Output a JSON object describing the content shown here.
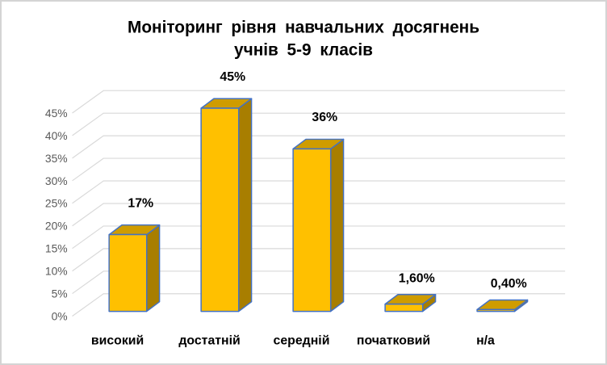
{
  "title": {
    "line1": "Моніторинг рівня навчальних досягнень",
    "line2": "учнів 5-9 класів"
  },
  "chart_data": {
    "type": "bar",
    "style": "3d-column",
    "title": "Моніторинг рівня навчальних досягнень учнів 5-9 класів",
    "categories": [
      "високий",
      "достатній",
      "середній",
      "початковий",
      "н/а"
    ],
    "values": [
      17,
      45,
      36,
      1.6,
      0.4
    ],
    "data_labels": [
      "17%",
      "45%",
      "36%",
      "1,60%",
      "0,40%"
    ],
    "y_ticks": [
      "0%",
      "5%",
      "10%",
      "15%",
      "20%",
      "25%",
      "30%",
      "35%",
      "40%",
      "45%"
    ],
    "ylim": [
      0,
      45
    ],
    "xlabel": "",
    "ylabel": "",
    "grid": true,
    "legend": false,
    "colors": {
      "bar_front": "#FFC000",
      "bar_top": "#CF9C00",
      "bar_side": "#A87E00",
      "bar_border": "#4472C4",
      "gridline": "#D9D9D9",
      "title": "#1F4E79",
      "y_tick_label": "#595959",
      "data_label": "#000000",
      "category_label": "#000000"
    }
  }
}
